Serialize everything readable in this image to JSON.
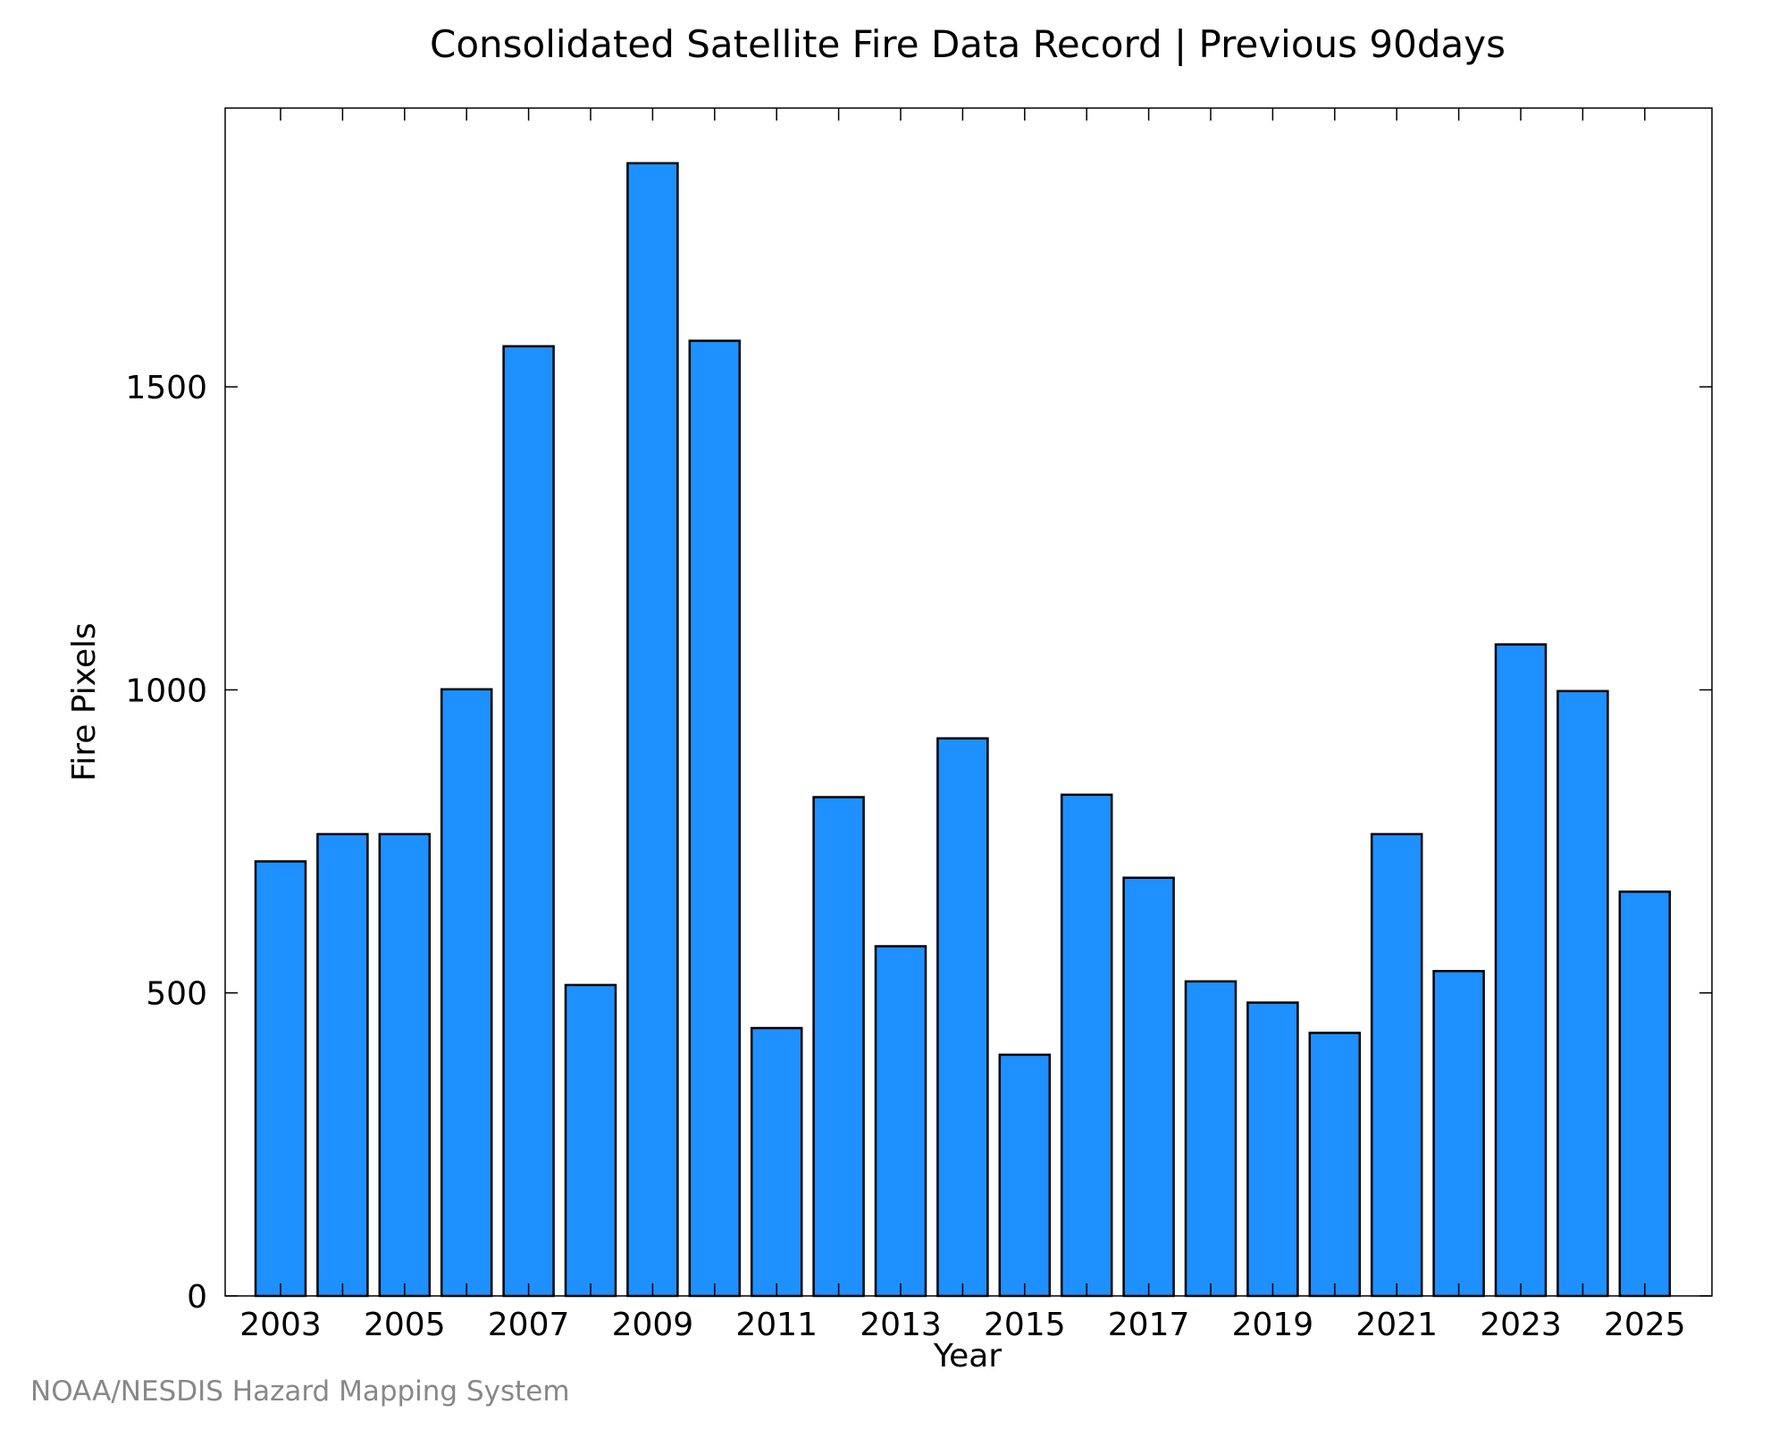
{
  "chart_data": {
    "type": "bar",
    "title": "Consolidated Satellite Fire Data Record | Previous 90days",
    "xlabel": "Year",
    "ylabel": "Fire Pixels",
    "categories": [
      "2003",
      "2004",
      "2005",
      "2006",
      "2007",
      "2008",
      "2009",
      "2010",
      "2011",
      "2012",
      "2013",
      "2014",
      "2015",
      "2016",
      "2017",
      "2018",
      "2019",
      "2020",
      "2021",
      "2022",
      "2023",
      "2024",
      "2025"
    ],
    "values": [
      717,
      762,
      762,
      1001,
      1567,
      513,
      1869,
      1576,
      442,
      823,
      577,
      920,
      398,
      827,
      690,
      519,
      484,
      434,
      762,
      536,
      1075,
      998,
      667
    ],
    "x_tick_labels": [
      "2003",
      "2005",
      "2007",
      "2009",
      "2011",
      "2013",
      "2015",
      "2017",
      "2019",
      "2021",
      "2023",
      "2025"
    ],
    "y_ticks": [
      0,
      500,
      1000,
      1500
    ],
    "ylim": [
      0,
      1960
    ],
    "bar_color": "#1e90ff",
    "grid": false,
    "legend": "none"
  },
  "footer": "NOAA/NESDIS Hazard Mapping System"
}
